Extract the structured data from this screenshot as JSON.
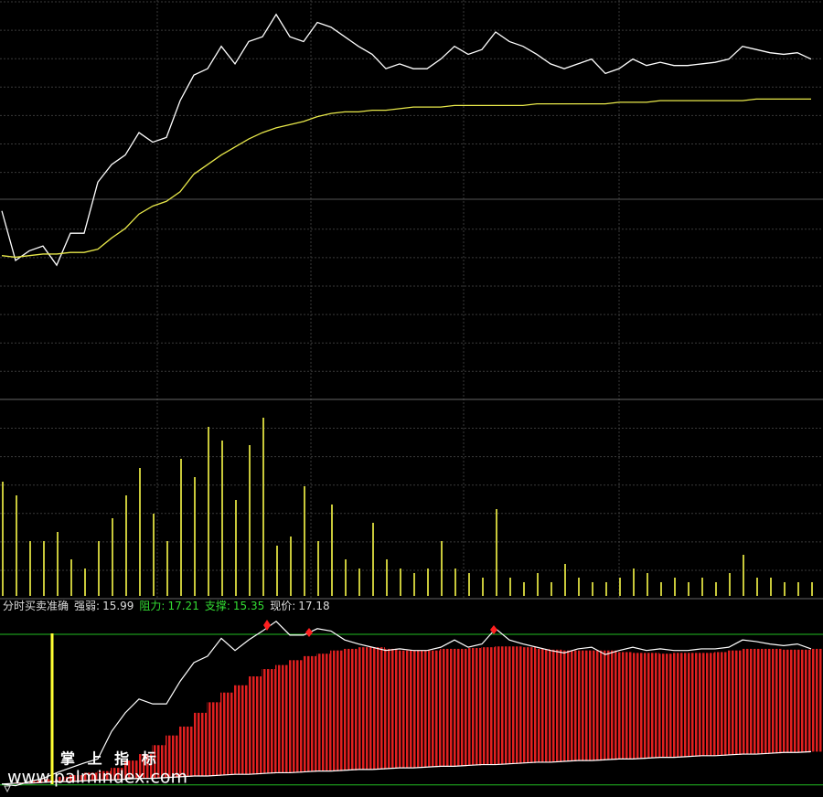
{
  "chart_data": [
    {
      "type": "line",
      "ylim": [
        15.0,
        17.5
      ],
      "series": [
        {
          "color": "#ffffff",
          "values": [
            16.18,
            15.87,
            15.93,
            15.96,
            15.84,
            16.04,
            16.04,
            16.36,
            16.47,
            16.53,
            16.67,
            16.61,
            16.64,
            16.87,
            17.03,
            17.07,
            17.21,
            17.1,
            17.24,
            17.27,
            17.41,
            17.27,
            17.24,
            17.36,
            17.33,
            17.27,
            17.21,
            17.16,
            17.07,
            17.1,
            17.07,
            17.07,
            17.13,
            17.21,
            17.16,
            17.19,
            17.3,
            17.24,
            17.21,
            17.16,
            17.1,
            17.07,
            17.1,
            17.13,
            17.04,
            17.07,
            17.13,
            17.09,
            17.11,
            17.09,
            17.09,
            17.1,
            17.11,
            17.13,
            17.21,
            17.19,
            17.17,
            17.16,
            17.17,
            17.13
          ]
        },
        {
          "color": "#e8e84a",
          "values": [
            15.9,
            15.89,
            15.9,
            15.91,
            15.91,
            15.92,
            15.92,
            15.94,
            16.01,
            16.07,
            16.16,
            16.21,
            16.24,
            16.3,
            16.41,
            16.47,
            16.53,
            16.58,
            16.63,
            16.67,
            16.7,
            16.72,
            16.74,
            16.77,
            16.79,
            16.8,
            16.8,
            16.81,
            16.81,
            16.82,
            16.83,
            16.83,
            16.83,
            16.84,
            16.84,
            16.84,
            16.84,
            16.84,
            16.84,
            16.85,
            16.85,
            16.85,
            16.85,
            16.85,
            16.85,
            16.86,
            16.86,
            16.86,
            16.87,
            16.87,
            16.87,
            16.87,
            16.87,
            16.87,
            16.87,
            16.88,
            16.88,
            16.88,
            16.88,
            16.88
          ]
        }
      ]
    },
    {
      "type": "bar",
      "ylim": [
        0,
        200
      ],
      "color": "#c8c83a",
      "values": [
        125,
        110,
        60,
        60,
        70,
        40,
        30,
        60,
        85,
        110,
        140,
        90,
        60,
        150,
        130,
        185,
        170,
        105,
        165,
        195,
        55,
        65,
        120,
        60,
        100,
        40,
        30,
        80,
        40,
        30,
        25,
        30,
        60,
        30,
        25,
        20,
        95,
        20,
        15,
        25,
        15,
        35,
        20,
        15,
        15,
        20,
        30,
        25,
        15,
        20,
        15,
        20,
        15,
        25,
        45,
        20,
        20,
        15,
        15,
        15
      ]
    },
    {
      "type": "indicator",
      "name": "分时买卖准确",
      "fields": [
        {
          "label": "强弱:",
          "value": 15.99,
          "color": "#dddddd"
        },
        {
          "label": "阻力:",
          "value": 17.21,
          "color": "#33dd33"
        },
        {
          "label": "支撑:",
          "value": 15.35,
          "color": "#33dd33"
        },
        {
          "label": "现价:",
          "value": 17.18,
          "color": "#dddddd"
        }
      ],
      "ylim": [
        15.2,
        17.65
      ],
      "bar_color": "#e02020",
      "line_color": "#ffffff",
      "bar_tops": [
        15.36,
        15.38,
        15.4,
        15.42,
        15.45,
        15.47,
        15.5,
        15.52,
        15.56,
        15.65,
        15.73,
        15.84,
        15.96,
        16.07,
        16.24,
        16.37,
        16.49,
        16.58,
        16.69,
        16.78,
        16.83,
        16.89,
        16.94,
        16.97,
        17.01,
        17.03,
        17.05,
        17.05,
        17.03,
        17.01,
        17.01,
        17.01,
        17.03,
        17.03,
        17.04,
        17.05,
        17.06,
        17.06,
        17.05,
        17.03,
        17.02,
        17.01,
        17.01,
        17.01,
        17.01,
        16.99,
        16.98,
        16.98,
        16.97,
        16.98,
        16.98,
        16.98,
        16.99,
        17.01,
        17.03,
        17.03,
        17.03,
        17.02,
        17.02,
        17.03
      ],
      "bar_bases": [
        15.36,
        15.37,
        15.37,
        15.38,
        15.39,
        15.39,
        15.4,
        15.41,
        15.41,
        15.42,
        15.43,
        15.43,
        15.44,
        15.45,
        15.46,
        15.46,
        15.47,
        15.48,
        15.48,
        15.49,
        15.5,
        15.5,
        15.51,
        15.52,
        15.52,
        15.53,
        15.54,
        15.54,
        15.55,
        15.56,
        15.56,
        15.57,
        15.58,
        15.58,
        15.59,
        15.6,
        15.6,
        15.61,
        15.62,
        15.63,
        15.63,
        15.64,
        15.65,
        15.65,
        15.66,
        15.67,
        15.67,
        15.68,
        15.69,
        15.69,
        15.7,
        15.71,
        15.71,
        15.72,
        15.73,
        15.73,
        15.74,
        15.75,
        15.75,
        15.76
      ],
      "line": [
        15.36,
        15.34,
        15.39,
        15.43,
        15.5,
        15.56,
        15.62,
        15.67,
        16.01,
        16.24,
        16.41,
        16.35,
        16.35,
        16.63,
        16.86,
        16.94,
        17.16,
        17.01,
        17.14,
        17.25,
        17.37,
        17.2,
        17.2,
        17.28,
        17.25,
        17.14,
        17.09,
        17.05,
        17.01,
        17.03,
        17.01,
        17.01,
        17.05,
        17.14,
        17.05,
        17.09,
        17.28,
        17.14,
        17.09,
        17.05,
        17.01,
        16.98,
        17.03,
        17.05,
        16.96,
        17.01,
        17.05,
        17.01,
        17.03,
        17.01,
        17.01,
        17.03,
        17.03,
        17.05,
        17.14,
        17.12,
        17.09,
        17.07,
        17.09,
        17.03
      ],
      "watermark": "掌 上 指 标",
      "site": "www.palmindex.com"
    }
  ]
}
